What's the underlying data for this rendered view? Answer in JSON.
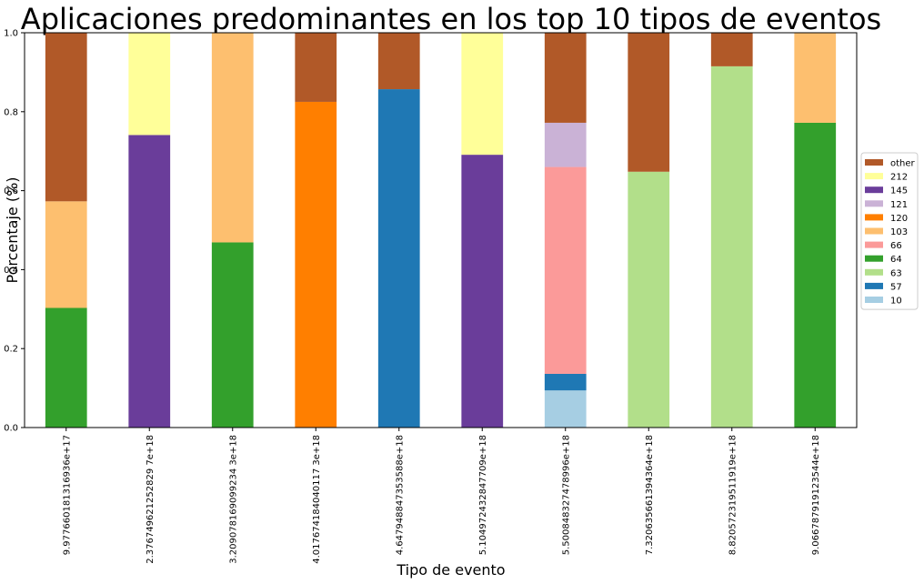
{
  "chart_data": {
    "type": "bar",
    "stacked": true,
    "title": "Aplicaciones predominantes en los top 10 tipos de eventos",
    "xlabel": "Tipo de evento",
    "ylabel": "Porcentaje (%)",
    "ylim": [
      0,
      1
    ],
    "yticks": [
      "0.0",
      "0.2",
      "0.4",
      "0.6",
      "0.8",
      "1.0"
    ],
    "grid": false,
    "legend_position": "right",
    "categories": [
      "9.977660181316936e+17",
      "2.376749621252829 7e+18",
      "3.209078169099234 3e+18",
      "4.017674184040117 3e+18",
      "4.647948847353588e+18",
      "5.104972432847709e+18",
      "5.500848327478996e+18",
      "7.320635661394364e+18",
      "8.820572319511919e+18",
      "9.066787919123544e+18"
    ],
    "series": [
      {
        "name": "10",
        "color": "#a6cee3",
        "values": [
          0,
          0,
          0,
          0,
          0,
          0,
          0.094,
          0,
          0,
          0
        ]
      },
      {
        "name": "57",
        "color": "#1f78b4",
        "values": [
          0,
          0,
          0,
          0,
          0.857,
          0,
          0.042,
          0,
          0,
          0
        ]
      },
      {
        "name": "63",
        "color": "#b2df8a",
        "values": [
          0,
          0,
          0,
          0,
          0,
          0,
          0,
          0.648,
          0.915,
          0
        ]
      },
      {
        "name": "64",
        "color": "#33a02c",
        "values": [
          0.303,
          0,
          0.469,
          0,
          0,
          0,
          0,
          0,
          0,
          0.772
        ]
      },
      {
        "name": "66",
        "color": "#fb9a99",
        "values": [
          0,
          0,
          0,
          0,
          0,
          0,
          0.524,
          0,
          0,
          0
        ]
      },
      {
        "name": "103",
        "color": "#fdbf6f",
        "values": [
          0.27,
          0,
          0.531,
          0,
          0,
          0,
          0,
          0,
          0,
          0.228
        ]
      },
      {
        "name": "120",
        "color": "#ff7f00",
        "values": [
          0,
          0,
          0,
          0.825,
          0,
          0,
          0,
          0,
          0,
          0
        ]
      },
      {
        "name": "121",
        "color": "#cab2d6",
        "values": [
          0,
          0,
          0,
          0,
          0,
          0,
          0.112,
          0,
          0,
          0
        ]
      },
      {
        "name": "145",
        "color": "#6a3d9a",
        "values": [
          0,
          0.741,
          0,
          0,
          0,
          0.691,
          0,
          0,
          0,
          0
        ]
      },
      {
        "name": "212",
        "color": "#ffff99",
        "values": [
          0,
          0.259,
          0,
          0,
          0,
          0.309,
          0,
          0,
          0,
          0
        ]
      },
      {
        "name": "other",
        "color": "#b15928",
        "values": [
          0.427,
          0,
          0,
          0.175,
          0.143,
          0,
          0.228,
          0.352,
          0.085,
          0
        ]
      }
    ]
  }
}
